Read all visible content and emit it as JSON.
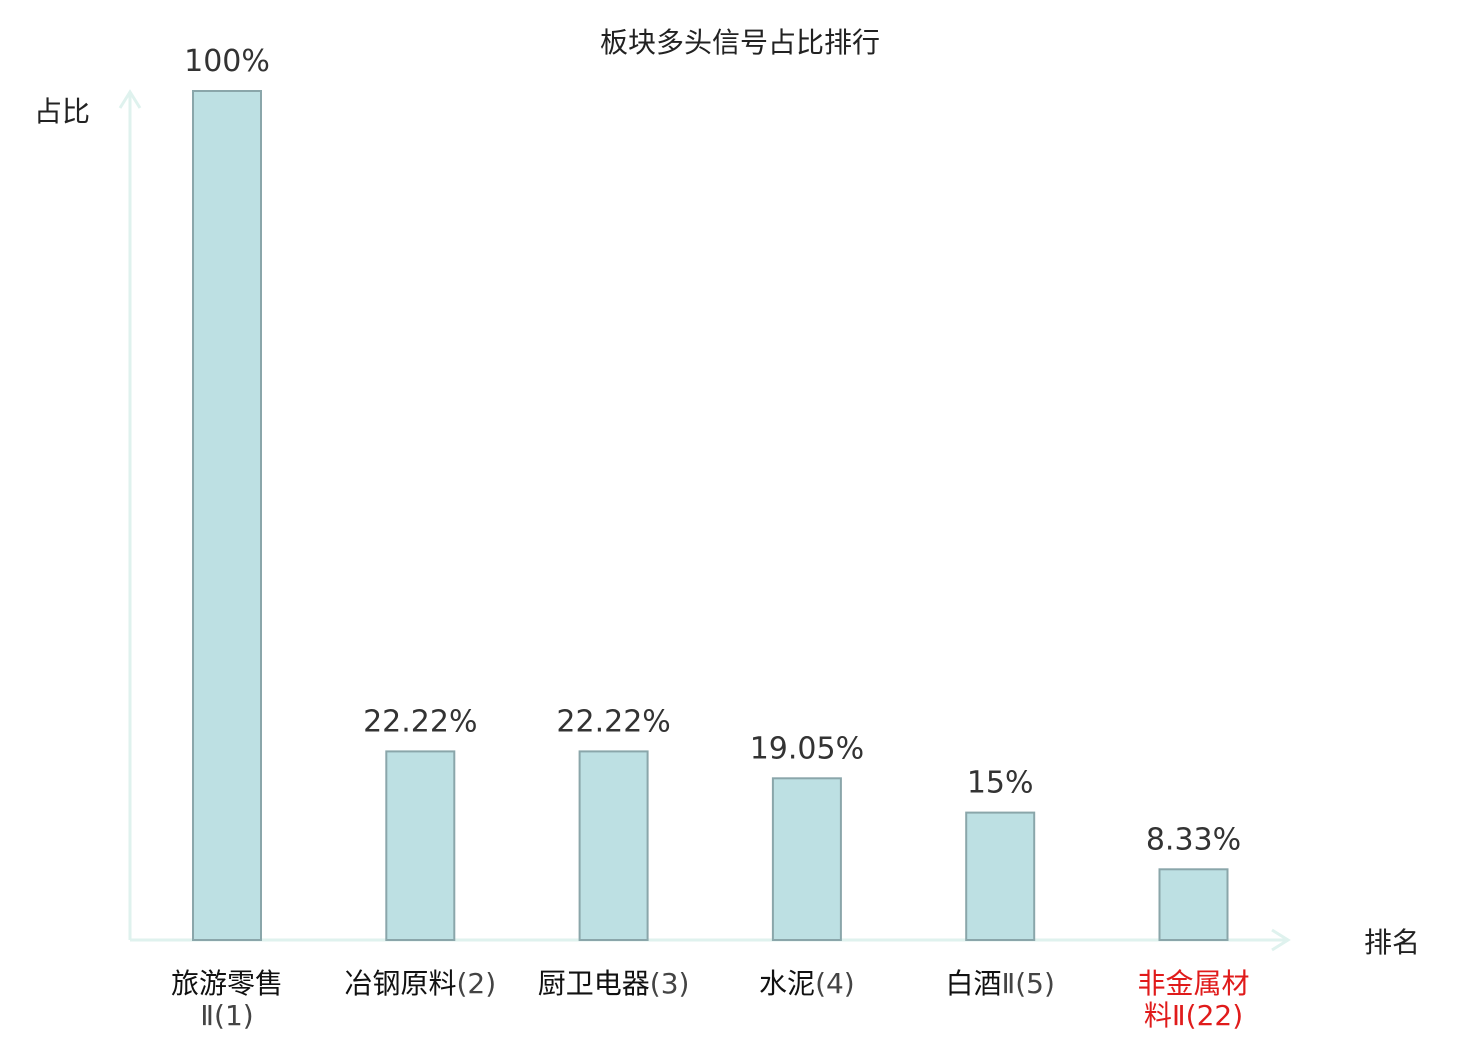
{
  "chart_data": {
    "type": "bar",
    "title": "板块多头信号占比排行",
    "ylabel": "占比",
    "xlabel": "排名",
    "ylim": [
      0,
      100
    ],
    "grid": false,
    "categories": [
      {
        "name": "旅游零售",
        "suffix": "Ⅱ",
        "rank": "(1)",
        "highlight": false
      },
      {
        "name": "冶钢原料",
        "suffix": "",
        "rank": "(2)",
        "highlight": false
      },
      {
        "name": "厨卫电器",
        "suffix": "",
        "rank": "(3)",
        "highlight": false
      },
      {
        "name": "水泥",
        "suffix": "",
        "rank": "(4)",
        "highlight": false
      },
      {
        "name": "白酒",
        "suffix": "Ⅱ",
        "rank": "(5)",
        "highlight": false
      },
      {
        "name": "非金属材料",
        "suffix": "Ⅱ",
        "rank": "(22)",
        "highlight": true
      }
    ],
    "values": [
      100,
      22.22,
      22.22,
      19.05,
      15,
      8.33
    ],
    "value_labels": [
      "100%",
      "22.22%",
      "22.22%",
      "19.05%",
      "15%",
      "8.33%"
    ]
  },
  "colors": {
    "bar_fill": "#bde0e3",
    "bar_stroke": "#8aa6aa",
    "axis": "#dff2ee",
    "text": "#222222",
    "value_text": "#333333",
    "category_text": "#111111",
    "rank_text": "#444444",
    "highlight": "#e01b1b"
  }
}
